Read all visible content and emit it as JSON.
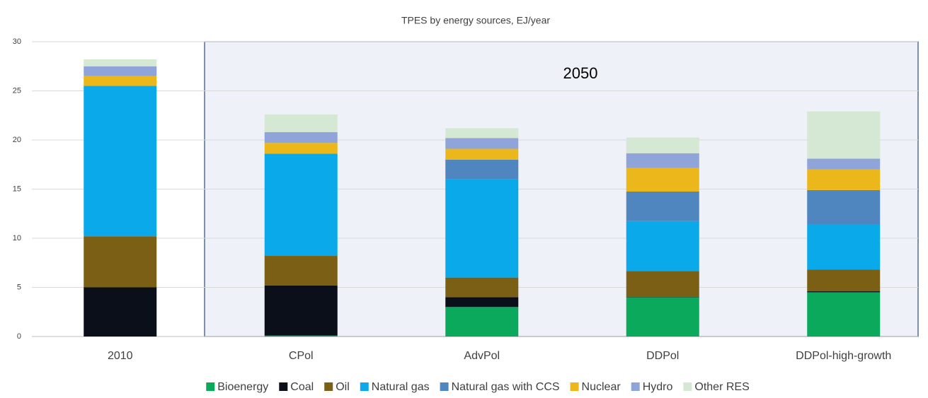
{
  "chart_data": {
    "type": "stacked_bar",
    "title": "TPES by energy sources, EJ/year",
    "annotation": "2050",
    "categories": [
      "2010",
      "CPol",
      "AdvPol",
      "DDPol",
      "DDPol-high-growth"
    ],
    "series": [
      {
        "name": "Bioenergy",
        "color": "#0ba95b",
        "values": [
          0,
          0.1,
          3,
          4,
          4.5
        ]
      },
      {
        "name": "Coal",
        "color": "#0b0f1a",
        "values": [
          5,
          5.1,
          1,
          0.05,
          0.1
        ]
      },
      {
        "name": "Oil",
        "color": "#7a5f14",
        "values": [
          5.2,
          3,
          2,
          2.6,
          2.2
        ]
      },
      {
        "name": "Natural gas",
        "color": "#0aa9ea",
        "values": [
          15.3,
          10.4,
          10,
          5.1,
          4.6
        ]
      },
      {
        "name": "Natural gas with CCS",
        "color": "#4f86c0",
        "values": [
          0,
          0,
          2,
          3,
          3.5
        ]
      },
      {
        "name": "Nuclear",
        "color": "#ecb71a",
        "values": [
          1,
          1.1,
          1.1,
          2.4,
          2.1
        ]
      },
      {
        "name": "Hydro",
        "color": "#8fa5da",
        "values": [
          1,
          1.1,
          1.1,
          1.5,
          1.1
        ]
      },
      {
        "name": "Other RES",
        "color": "#d5e8d4",
        "values": [
          0.7,
          1.8,
          1,
          1.6,
          4.8
        ]
      }
    ],
    "ylim": [
      0,
      30
    ],
    "yticks": [
      0,
      5,
      10,
      15,
      20,
      25,
      30
    ],
    "grid": true,
    "legend": "bottom"
  }
}
